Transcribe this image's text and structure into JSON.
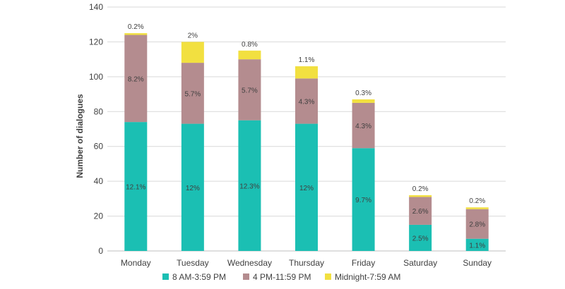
{
  "chart_data": {
    "type": "bar",
    "stacked": true,
    "title": "",
    "xlabel": "",
    "ylabel": "Number of dialogues",
    "ylim": [
      0,
      140
    ],
    "yticks": [
      0,
      20,
      40,
      60,
      80,
      100,
      120,
      140
    ],
    "grid": true,
    "legend_position": "bottom",
    "categories": [
      "Monday",
      "Tuesday",
      "Wednesday",
      "Thursday",
      "Friday",
      "Saturday",
      "Sunday"
    ],
    "series": [
      {
        "name": "8 AM-3:59 PM",
        "color": "#1BBFB3",
        "values": [
          74,
          73,
          75,
          73,
          59,
          15,
          7
        ],
        "labels": [
          "12.1%",
          "12%",
          "12.3%",
          "12%",
          "9.7%",
          "2.5%",
          "1.1%"
        ]
      },
      {
        "name": "4 PM-11:59 PM",
        "color": "#B48C8F",
        "values": [
          50,
          35,
          35,
          26,
          26,
          16,
          17
        ],
        "labels": [
          "8.2%",
          "5.7%",
          "5.7%",
          "4.3%",
          "4.3%",
          "2.6%",
          "2.8%"
        ]
      },
      {
        "name": "Midnight-7:59 AM",
        "color": "#F2E040",
        "values": [
          1,
          12,
          5,
          7,
          2,
          1,
          1
        ],
        "labels": [
          "0.2%",
          "2%",
          "0.8%",
          "1.1%",
          "0.3%",
          "0.2%",
          "0.2%"
        ]
      }
    ]
  }
}
